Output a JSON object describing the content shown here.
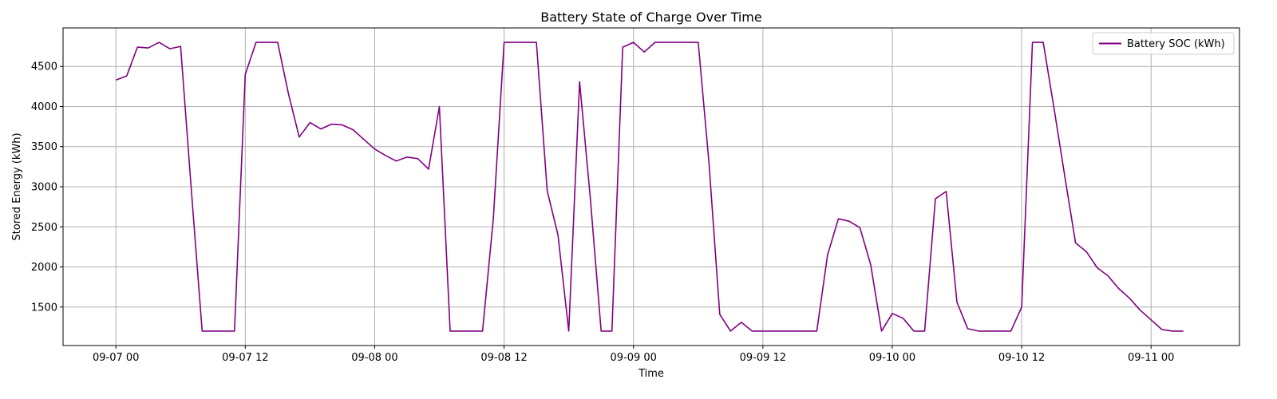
{
  "chart_data": {
    "type": "line",
    "title": "Battery State of Charge Over Time",
    "xlabel": "Time",
    "ylabel": "Stored Energy (kWh)",
    "x_ticks": [
      {
        "t": 0,
        "label": "09-07 00"
      },
      {
        "t": 12,
        "label": "09-07 12"
      },
      {
        "t": 24,
        "label": "09-08 00"
      },
      {
        "t": 36,
        "label": "09-08 12"
      },
      {
        "t": 48,
        "label": "09-09 00"
      },
      {
        "t": 60,
        "label": "09-09 12"
      },
      {
        "t": 72,
        "label": "09-10 00"
      },
      {
        "t": 84,
        "label": "09-10 12"
      },
      {
        "t": 96,
        "label": "09-11 00"
      }
    ],
    "y_ticks": [
      1500,
      2000,
      2500,
      3000,
      3500,
      4000,
      4500
    ],
    "xlim": [
      -4.9,
      104.2
    ],
    "ylim": [
      1020,
      4980
    ],
    "grid": true,
    "legend_position": "top-right",
    "series": [
      {
        "name": "Battery SOC (kWh)",
        "color": "#800080",
        "x": [
          0,
          1,
          2,
          3,
          4,
          5,
          6,
          7,
          8,
          9,
          10,
          11,
          12,
          13,
          14,
          15,
          16,
          17,
          18,
          19,
          20,
          21,
          22,
          23,
          24,
          25,
          26,
          27,
          28,
          29,
          30,
          31,
          32,
          33,
          34,
          35,
          36,
          37,
          38,
          39,
          40,
          41,
          42,
          43,
          44,
          45,
          46,
          47,
          48,
          49,
          50,
          51,
          52,
          53,
          54,
          55,
          56,
          57,
          58,
          59,
          60,
          61,
          62,
          63,
          64,
          65,
          66,
          67,
          68,
          69,
          70,
          71,
          72,
          73,
          74,
          75,
          76,
          77,
          78,
          79,
          80,
          81,
          82,
          83,
          84,
          85,
          86,
          87,
          88,
          89,
          90,
          91,
          92,
          93,
          94,
          95,
          96,
          97,
          98,
          99
        ],
        "y": [
          4330,
          4380,
          4740,
          4730,
          4800,
          4720,
          4750,
          2950,
          1200,
          1200,
          1200,
          1200,
          4400,
          4800,
          4800,
          4800,
          4160,
          3620,
          3800,
          3720,
          3780,
          3770,
          3710,
          3590,
          3470,
          3390,
          3320,
          3370,
          3350,
          3220,
          4000,
          1200,
          1200,
          1200,
          1200,
          2600,
          4800,
          4800,
          4800,
          4800,
          2950,
          2400,
          1200,
          4310,
          2850,
          1200,
          1200,
          4740,
          4800,
          4680,
          4800,
          4800,
          4800,
          4800,
          4800,
          3300,
          1410,
          1200,
          1310,
          1200,
          1200,
          1200,
          1200,
          1200,
          1200,
          1200,
          2150,
          2600,
          2570,
          2490,
          2030,
          1200,
          1420,
          1360,
          1200,
          1200,
          2850,
          2940,
          1560,
          1230,
          1200,
          1200,
          1200,
          1200,
          1500,
          4800,
          4800,
          3980,
          3130,
          2300,
          2190,
          1990,
          1890,
          1730,
          1610,
          1460,
          1340,
          1220,
          1200,
          1200
        ]
      }
    ]
  }
}
